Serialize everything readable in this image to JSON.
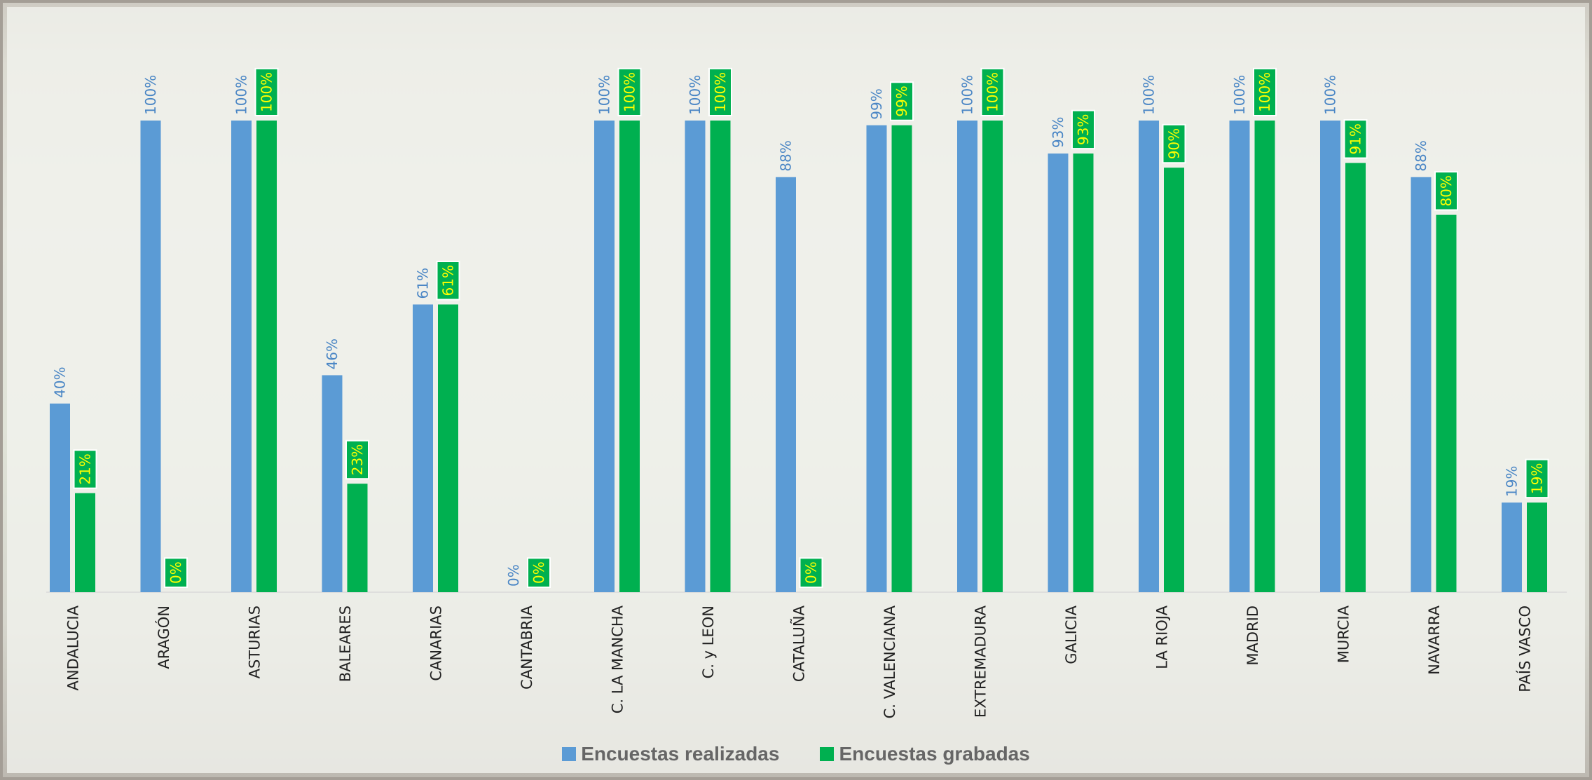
{
  "chart_data": {
    "type": "bar",
    "categories": [
      "ANDALUCIA",
      "ARAGÓN",
      "ASTURIAS",
      "BALEARES",
      "CANARIAS",
      "CANTABRIA",
      "C. LA MANCHA",
      "C. y LEON",
      "CATALUÑA",
      "C. VALENCIANA",
      "EXTREMADURA",
      "GALICIA",
      "LA RIOJA",
      "MADRID",
      "MURCIA",
      "NAVARRA",
      "PAÍS VASCO"
    ],
    "series": [
      {
        "name": "Encuestas realizadas",
        "color": "#5b9bd5",
        "values": [
          40,
          100,
          100,
          46,
          61,
          0,
          100,
          100,
          88,
          99,
          100,
          93,
          100,
          100,
          100,
          88,
          19
        ],
        "labels": [
          "40%",
          "100%",
          "100%",
          "46%",
          "61%",
          "0%",
          "100%",
          "100%",
          "88%",
          "99%",
          "100%",
          "93%",
          "100%",
          "100%",
          "100%",
          "88%",
          "19%"
        ]
      },
      {
        "name": "Encuestas grabadas",
        "color": "#00b050",
        "label_color": "#ffff00",
        "values": [
          21,
          0,
          100,
          23,
          61,
          0,
          100,
          100,
          0,
          99,
          100,
          93,
          90,
          100,
          91,
          80,
          19
        ],
        "labels": [
          "21%",
          "0%",
          "100%",
          "23%",
          "61%",
          "0%",
          "100%",
          "100%",
          "0%",
          "99%",
          "100%",
          "93%",
          "90%",
          "100%",
          "91%",
          "80%",
          "19%"
        ]
      }
    ],
    "title": "",
    "xlabel": "",
    "ylabel": "",
    "ylim": [
      0,
      100
    ],
    "grid": false,
    "legend_position": "bottom"
  }
}
